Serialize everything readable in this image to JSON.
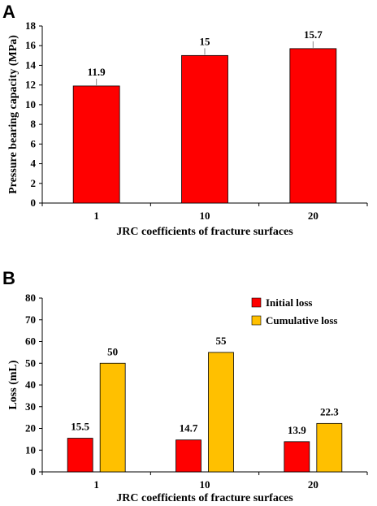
{
  "chart_data": [
    {
      "panel": "A",
      "type": "bar",
      "categories": [
        "1",
        "10",
        "20"
      ],
      "series": [
        {
          "values": [
            11.9,
            15,
            15.7
          ],
          "color": "#ff0000"
        }
      ],
      "data_labels": [
        "11.9",
        "15",
        "15.7"
      ],
      "xlabel": "JRC coefficients of fracture surfaces",
      "ylabel": "Pressure bearing capacity (MPa)",
      "ylim": [
        0,
        18
      ],
      "yticks": [
        0,
        2,
        4,
        6,
        8,
        10,
        12,
        14,
        16,
        18
      ],
      "grid": false
    },
    {
      "panel": "B",
      "type": "bar",
      "categories": [
        "1",
        "10",
        "20"
      ],
      "series": [
        {
          "name": "Initial loss",
          "values": [
            15.5,
            14.7,
            13.9
          ],
          "color": "#ff0000"
        },
        {
          "name": "Cumulative loss",
          "values": [
            50,
            55,
            22.3
          ],
          "color": "#ffc000"
        }
      ],
      "data_labels": [
        [
          "15.5",
          "14.7",
          "13.9"
        ],
        [
          "50",
          "55",
          "22.3"
        ]
      ],
      "xlabel": "JRC coefficients of fracture surfaces",
      "ylabel": "Loss (mL)",
      "ylim": [
        0,
        80
      ],
      "yticks": [
        0,
        10,
        20,
        30,
        40,
        50,
        60,
        70,
        80
      ],
      "legend": "top-right",
      "grid": false
    }
  ]
}
